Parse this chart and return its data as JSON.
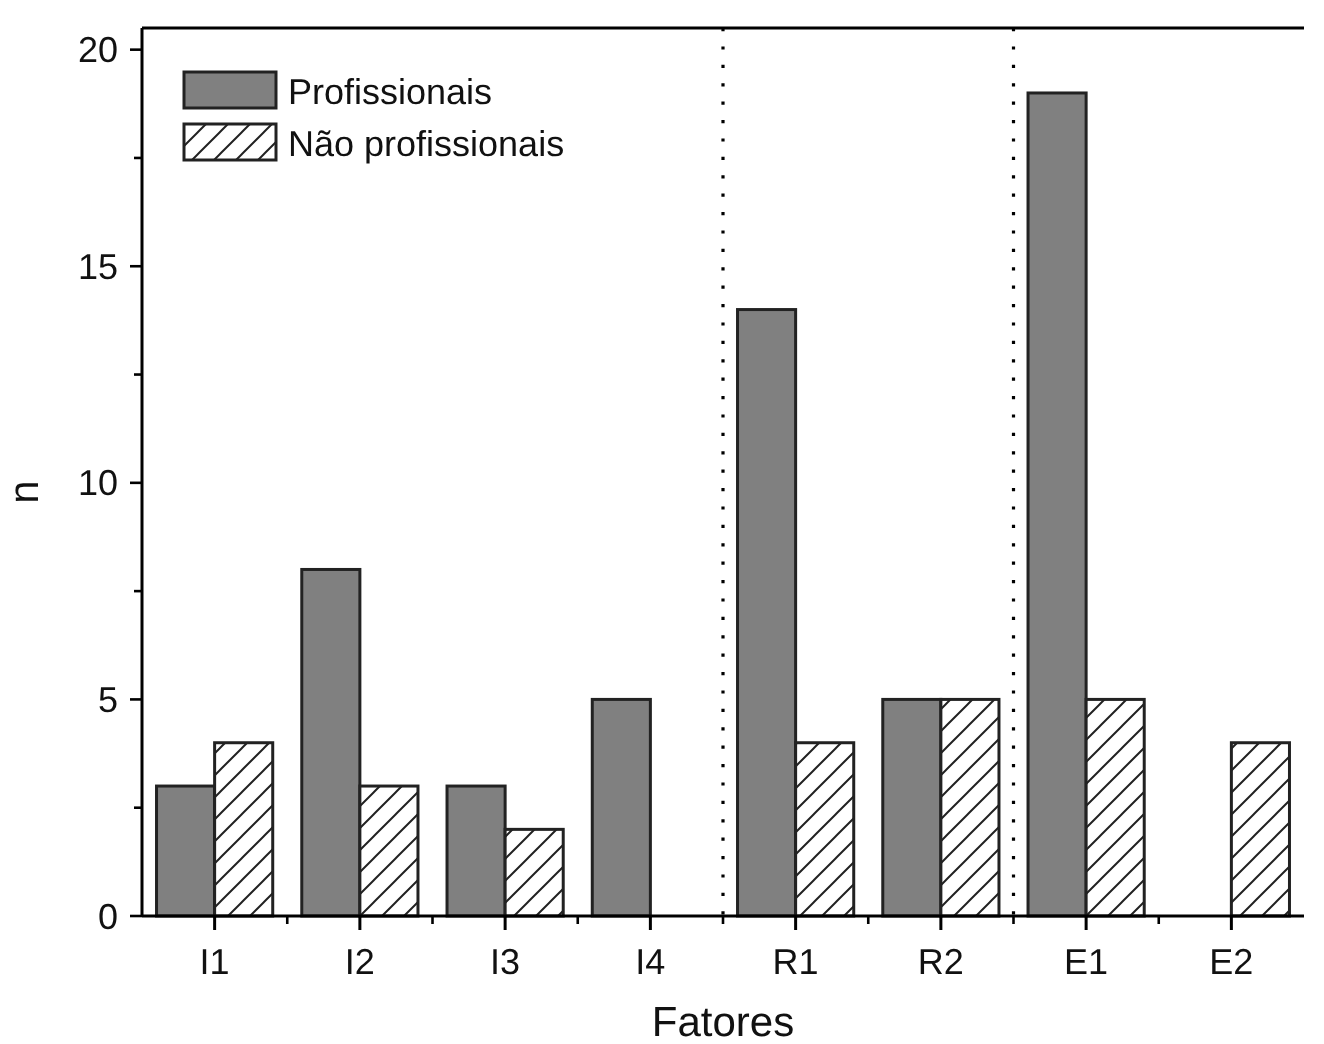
{
  "chart_data": {
    "type": "bar",
    "xlabel": "Fatores",
    "ylabel": "n",
    "categories": [
      "I1",
      "I2",
      "I3",
      "I4",
      "R1",
      "R2",
      "E1",
      "E2"
    ],
    "series": [
      {
        "name": "Profissionais",
        "color": "#808080",
        "values": [
          3,
          8,
          3,
          5,
          14,
          5,
          19,
          null
        ]
      },
      {
        "name": "Não profissionais",
        "color": "#222222",
        "values": [
          4,
          3,
          2,
          null,
          4,
          5,
          5,
          4
        ]
      }
    ],
    "ylim": [
      0,
      20.5
    ],
    "yticks": [
      0,
      {
        "value": 2.5,
        "label": null
      },
      5,
      {
        "value": 7.5,
        "label": null
      },
      10,
      {
        "value": 12.5,
        "label": null
      },
      15,
      {
        "value": 17.5,
        "label": null
      },
      20
    ],
    "legend": "top left"
  }
}
